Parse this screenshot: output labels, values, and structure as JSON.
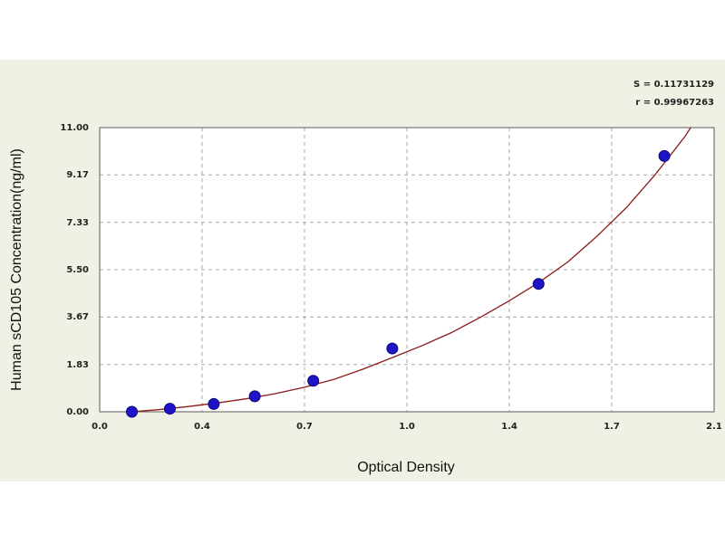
{
  "chart_data": {
    "type": "scatter",
    "xlabel": "Optical Density",
    "ylabel": "Human sCD105 Concentration(ng/ml)",
    "xlim": [
      0.0,
      2.1
    ],
    "ylim": [
      0.0,
      11.0
    ],
    "x_ticks": [
      "0.0",
      "0.4",
      "0.7",
      "1.0",
      "1.4",
      "1.7",
      "2.1"
    ],
    "x_tick_values": [
      0.0,
      0.35,
      0.7,
      1.05,
      1.4,
      1.75,
      2.1
    ],
    "y_ticks": [
      "0.00",
      "1.83",
      "3.67",
      "5.50",
      "7.33",
      "9.17",
      "11.00"
    ],
    "y_tick_values": [
      0.0,
      1.83,
      3.67,
      5.5,
      7.33,
      9.17,
      11.0
    ],
    "grid": true,
    "points": [
      {
        "x": 0.11,
        "y": 0.0
      },
      {
        "x": 0.24,
        "y": 0.12
      },
      {
        "x": 0.39,
        "y": 0.3
      },
      {
        "x": 0.53,
        "y": 0.6
      },
      {
        "x": 0.73,
        "y": 1.2
      },
      {
        "x": 1.0,
        "y": 2.45
      },
      {
        "x": 1.5,
        "y": 4.95
      },
      {
        "x": 1.93,
        "y": 9.9
      }
    ],
    "fit_curve": {
      "x": [
        0.11,
        0.2,
        0.3,
        0.4,
        0.5,
        0.6,
        0.7,
        0.8,
        0.9,
        1.0,
        1.1,
        1.2,
        1.3,
        1.4,
        1.5,
        1.6,
        1.7,
        1.8,
        1.9,
        2.0,
        2.02
      ],
      "y": [
        0.0,
        0.08,
        0.2,
        0.34,
        0.5,
        0.7,
        0.95,
        1.25,
        1.65,
        2.1,
        2.55,
        3.05,
        3.65,
        4.3,
        5.0,
        5.8,
        6.8,
        7.9,
        9.2,
        10.65,
        11.0
      ]
    },
    "stats": [
      "S = 0.11731129",
      "r = 0.99967263"
    ],
    "colors": {
      "point": "#1f14c8",
      "curve": "#8b1a1a",
      "grid": "#a8a8a8",
      "frame": "#5a5a5a"
    }
  }
}
